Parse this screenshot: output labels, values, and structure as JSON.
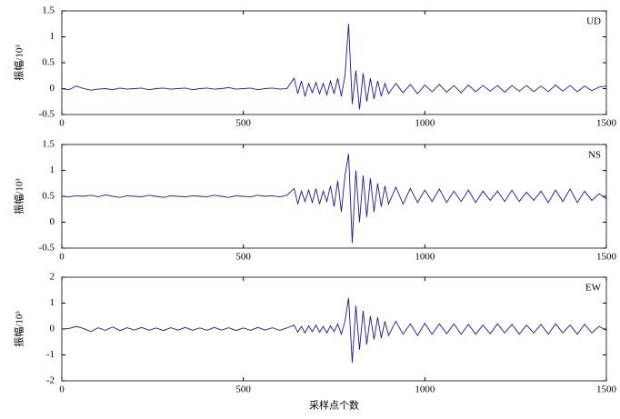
{
  "chart_data": [
    {
      "type": "line",
      "label": "UD",
      "ylabel": "振幅/10³",
      "x": [
        0,
        20,
        40,
        60,
        80,
        100,
        120,
        140,
        160,
        180,
        200,
        220,
        240,
        260,
        280,
        300,
        320,
        340,
        360,
        380,
        400,
        420,
        440,
        460,
        480,
        500,
        520,
        540,
        560,
        580,
        600,
        620,
        640,
        650,
        660,
        670,
        680,
        690,
        700,
        710,
        720,
        730,
        740,
        750,
        760,
        770,
        780,
        790,
        800,
        810,
        820,
        830,
        840,
        850,
        860,
        870,
        880,
        890,
        900,
        920,
        940,
        960,
        980,
        1000,
        1020,
        1040,
        1060,
        1080,
        1100,
        1120,
        1140,
        1160,
        1180,
        1200,
        1220,
        1240,
        1260,
        1280,
        1300,
        1320,
        1340,
        1360,
        1380,
        1400,
        1420,
        1440,
        1460,
        1480,
        1500
      ],
      "series": [
        {
          "color": "#1a1a80",
          "values": [
            0,
            -0.02,
            0.05,
            0,
            -0.03,
            -0.01,
            0,
            -0.02,
            0.01,
            -0.01,
            0,
            0.01,
            -0.02,
            0,
            0.01,
            -0.01,
            0,
            0.01,
            -0.02,
            0,
            0.01,
            -0.01,
            0,
            0.02,
            -0.01,
            0,
            0.01,
            -0.02,
            0,
            0.01,
            -0.01,
            0,
            0.2,
            -0.1,
            0.15,
            -0.15,
            0.1,
            -0.08,
            0.12,
            -0.1,
            0.1,
            -0.12,
            0.15,
            -0.1,
            0.2,
            -0.15,
            0.25,
            1.25,
            -0.3,
            0.35,
            -0.4,
            0.3,
            -0.25,
            0.2,
            -0.2,
            0.15,
            -0.15,
            0.1,
            -0.1,
            0.1,
            -0.08,
            0.08,
            -0.1,
            0.07,
            -0.06,
            0.08,
            -0.07,
            0.06,
            -0.08,
            0.07,
            -0.06,
            0.06,
            -0.05,
            0.06,
            -0.07,
            0.06,
            -0.05,
            0.06,
            -0.06,
            0.05,
            -0.06,
            0.07,
            -0.05,
            0.06,
            -0.06,
            0.05,
            -0.04,
            0.03,
            0.05
          ]
        }
      ],
      "xlim": [
        0,
        1500
      ],
      "xticks": [
        0,
        500,
        1000,
        1500
      ],
      "ylim": [
        -0.5,
        1.5
      ],
      "yticks": [
        -0.5,
        0,
        0.5,
        1,
        1.5
      ]
    },
    {
      "type": "line",
      "label": "NS",
      "ylabel": "振幅/10³",
      "x": [
        0,
        20,
        40,
        60,
        80,
        100,
        120,
        140,
        160,
        180,
        200,
        220,
        240,
        260,
        280,
        300,
        320,
        340,
        360,
        380,
        400,
        420,
        440,
        460,
        480,
        500,
        520,
        540,
        560,
        580,
        600,
        620,
        640,
        650,
        660,
        670,
        680,
        690,
        700,
        710,
        720,
        730,
        740,
        750,
        760,
        770,
        780,
        790,
        800,
        810,
        820,
        830,
        840,
        850,
        860,
        870,
        880,
        890,
        900,
        920,
        940,
        960,
        980,
        1000,
        1020,
        1040,
        1060,
        1080,
        1100,
        1120,
        1140,
        1160,
        1180,
        1200,
        1220,
        1240,
        1260,
        1280,
        1300,
        1320,
        1340,
        1360,
        1380,
        1400,
        1420,
        1440,
        1460,
        1480,
        1500
      ],
      "series": [
        {
          "color": "#1a1a80",
          "values": [
            0.5,
            0.49,
            0.51,
            0.5,
            0.52,
            0.49,
            0.53,
            0.5,
            0.48,
            0.51,
            0.5,
            0.49,
            0.52,
            0.5,
            0.48,
            0.51,
            0.5,
            0.49,
            0.51,
            0.5,
            0.49,
            0.52,
            0.5,
            0.48,
            0.51,
            0.5,
            0.49,
            0.52,
            0.5,
            0.51,
            0.49,
            0.52,
            0.65,
            0.35,
            0.6,
            0.4,
            0.62,
            0.38,
            0.65,
            0.35,
            0.6,
            0.4,
            0.7,
            0.3,
            0.8,
            0.2,
            0.9,
            1.32,
            -0.4,
            1.0,
            0.0,
            0.9,
            0.1,
            0.85,
            0.2,
            0.75,
            0.3,
            0.7,
            0.35,
            0.68,
            0.35,
            0.65,
            0.38,
            0.62,
            0.4,
            0.64,
            0.38,
            0.6,
            0.4,
            0.62,
            0.38,
            0.6,
            0.42,
            0.6,
            0.4,
            0.62,
            0.4,
            0.58,
            0.42,
            0.6,
            0.38,
            0.62,
            0.4,
            0.64,
            0.38,
            0.6,
            0.42,
            0.55,
            0.45
          ]
        }
      ],
      "xlim": [
        0,
        1500
      ],
      "xticks": [
        0,
        500,
        1000,
        1500
      ],
      "ylim": [
        -0.5,
        1.5
      ],
      "yticks": [
        -0.5,
        0,
        0.5,
        1,
        1.5
      ]
    },
    {
      "type": "line",
      "label": "EW",
      "ylabel": "振幅/10³",
      "xlabel": "采样点个数",
      "x": [
        0,
        20,
        40,
        60,
        80,
        100,
        120,
        140,
        160,
        180,
        200,
        220,
        240,
        260,
        280,
        300,
        320,
        340,
        360,
        380,
        400,
        420,
        440,
        460,
        480,
        500,
        520,
        540,
        560,
        580,
        600,
        620,
        640,
        650,
        660,
        670,
        680,
        690,
        700,
        710,
        720,
        730,
        740,
        750,
        760,
        770,
        780,
        790,
        800,
        810,
        820,
        830,
        840,
        850,
        860,
        870,
        880,
        890,
        900,
        920,
        940,
        960,
        980,
        1000,
        1020,
        1040,
        1060,
        1080,
        1100,
        1120,
        1140,
        1160,
        1180,
        1200,
        1220,
        1240,
        1260,
        1280,
        1300,
        1320,
        1340,
        1360,
        1380,
        1400,
        1420,
        1440,
        1460,
        1480,
        1500
      ],
      "series": [
        {
          "color": "#1a1a80",
          "values": [
            0,
            0.02,
            0.1,
            0.02,
            -0.1,
            0.05,
            -0.05,
            0.08,
            -0.06,
            0.05,
            -0.04,
            0.06,
            -0.05,
            0.04,
            -0.06,
            0.05,
            -0.04,
            0.06,
            -0.05,
            0.04,
            -0.05,
            0.06,
            -0.04,
            0.05,
            -0.06,
            0.04,
            -0.05,
            0.06,
            -0.04,
            0.05,
            -0.05,
            0.04,
            0.15,
            -0.12,
            0.1,
            -0.15,
            0.12,
            -0.1,
            0.15,
            -0.12,
            0.1,
            -0.15,
            0.12,
            -0.1,
            0.2,
            -0.2,
            0.3,
            1.2,
            -1.3,
            0.9,
            -0.8,
            0.7,
            -0.6,
            0.5,
            -0.4,
            0.45,
            -0.35,
            0.3,
            -0.25,
            0.3,
            -0.2,
            0.2,
            -0.25,
            0.22,
            -0.2,
            0.2,
            -0.18,
            0.2,
            -0.2,
            0.18,
            -0.2,
            0.15,
            -0.18,
            0.2,
            -0.15,
            0.18,
            -0.2,
            0.15,
            -0.15,
            0.18,
            -0.2,
            0.2,
            -0.15,
            0.15,
            -0.2,
            0.18,
            -0.15,
            0.1,
            -0.05
          ]
        }
      ],
      "xlim": [
        0,
        1500
      ],
      "xticks": [
        0,
        500,
        1000,
        1500
      ],
      "ylim": [
        -2,
        2
      ],
      "yticks": [
        -2,
        -1,
        0,
        1,
        2
      ]
    }
  ]
}
